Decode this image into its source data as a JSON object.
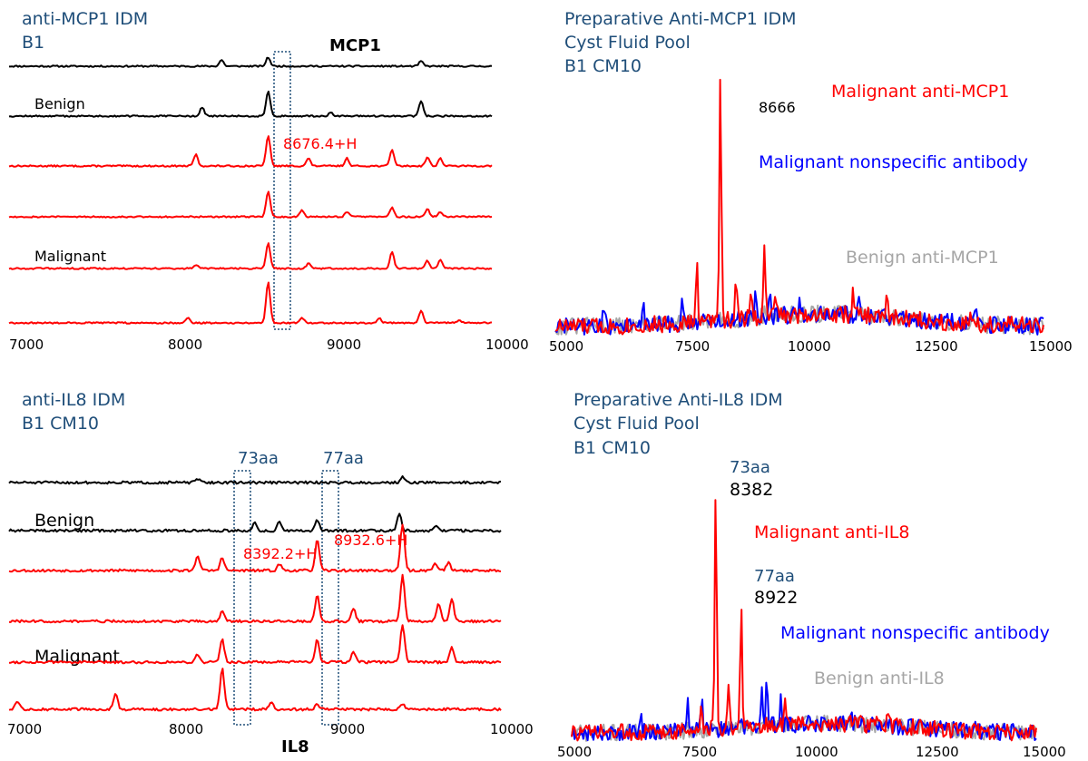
{
  "chart_data": [
    {
      "type": "line",
      "title_lines": [
        "anti-MCP1 IDM",
        "B1"
      ],
      "protein_label": "MCP1",
      "xlim": [
        7000,
        10000
      ],
      "x_ticks": [
        "7000",
        "8000",
        "9000",
        "10000"
      ],
      "highlight_window": [
        8550,
        8650
      ],
      "group_labels": {
        "benign": "Benign",
        "malignant": "Malignant"
      },
      "peak_annotation": "8676.4+H",
      "series": [
        {
          "group": "benign",
          "color": "#000000",
          "peaks": [
            [
              8320,
              0.25
            ],
            [
              8610,
              0.35
            ],
            [
              9560,
              0.2
            ]
          ]
        },
        {
          "group": "benign",
          "color": "#000000",
          "peaks": [
            [
              8200,
              0.35
            ],
            [
              8610,
              1.0
            ],
            [
              9560,
              0.6
            ],
            [
              9000,
              0.15
            ]
          ]
        },
        {
          "group": "malignant",
          "color": "#ff0000",
          "peaks": [
            [
              8160,
              0.45
            ],
            [
              8610,
              1.2
            ],
            [
              8860,
              0.3
            ],
            [
              9100,
              0.3
            ],
            [
              9380,
              0.65
            ],
            [
              9600,
              0.35
            ],
            [
              9680,
              0.3
            ]
          ]
        },
        {
          "group": "malignant",
          "color": "#ff0000",
          "peaks": [
            [
              8610,
              1.0
            ],
            [
              8820,
              0.25
            ],
            [
              9100,
              0.2
            ],
            [
              9380,
              0.35
            ],
            [
              9600,
              0.3
            ],
            [
              9680,
              0.2
            ]
          ]
        },
        {
          "group": "malignant",
          "color": "#ff0000",
          "peaks": [
            [
              8160,
              0.15
            ],
            [
              8610,
              1.0
            ],
            [
              8860,
              0.2
            ],
            [
              9380,
              0.65
            ],
            [
              9600,
              0.3
            ],
            [
              9680,
              0.35
            ]
          ]
        },
        {
          "group": "malignant",
          "color": "#ff0000",
          "peaks": [
            [
              8110,
              0.2
            ],
            [
              8610,
              1.6
            ],
            [
              8820,
              0.2
            ],
            [
              9300,
              0.2
            ],
            [
              9560,
              0.5
            ],
            [
              9800,
              0.1
            ]
          ]
        }
      ]
    },
    {
      "type": "line",
      "title_lines": [
        "Preparative Anti-MCP1 IDM",
        "Cyst Fluid Pool",
        "B1 CM10"
      ],
      "xlim": [
        5000,
        15000
      ],
      "x_ticks": [
        "5000",
        "7500",
        "10000",
        "12500",
        "15000"
      ],
      "peak_label": "8666",
      "series": [
        {
          "name": "Malignant anti-MCP1",
          "color": "#ff0000",
          "peaks": [
            [
              7900,
              0.22
            ],
            [
              8380,
              1.0
            ],
            [
              8700,
              0.14
            ],
            [
              9280,
              0.26
            ],
            [
              9000,
              0.12
            ],
            [
              9500,
              0.1
            ],
            [
              11100,
              0.08
            ],
            [
              11800,
              0.08
            ],
            [
              13500,
              0.06
            ]
          ]
        },
        {
          "name": "Malignant nonspecific antibody",
          "color": "#0000ff",
          "peaks": [
            [
              6000,
              0.08
            ],
            [
              6800,
              0.08
            ],
            [
              7600,
              0.1
            ],
            [
              9100,
              0.1
            ],
            [
              9400,
              0.08
            ],
            [
              10000,
              0.07
            ],
            [
              11200,
              0.06
            ],
            [
              13600,
              0.05
            ]
          ]
        },
        {
          "name": "Benign anti-MCP1",
          "color": "#a6a6a6",
          "peaks": [
            [
              9300,
              0.03
            ],
            [
              11000,
              0.02
            ]
          ]
        }
      ]
    },
    {
      "type": "line",
      "title_lines": [
        "anti-IL8 IDM",
        "B1 CM10"
      ],
      "protein_label": "IL8",
      "xlim": [
        7000,
        10000
      ],
      "x_ticks": [
        "7000",
        "8000",
        "9000",
        "10000"
      ],
      "highlight_windows": [
        [
          8260,
          8340
        ],
        [
          8820,
          8900
        ]
      ],
      "window_labels": [
        "73aa",
        "77aa"
      ],
      "group_labels": {
        "benign": "Benign",
        "malignant": "Malignant"
      },
      "peak_annotations": [
        "8392.2+H",
        "8932.6+H"
      ],
      "series": [
        {
          "group": "benign",
          "color": "#000000",
          "peaks": [
            [
              8150,
              0.15
            ],
            [
              9400,
              0.2
            ]
          ]
        },
        {
          "group": "benign",
          "color": "#000000",
          "peaks": [
            [
              8500,
              0.3
            ],
            [
              8650,
              0.35
            ],
            [
              8880,
              0.4
            ],
            [
              9380,
              0.7
            ],
            [
              9600,
              0.2
            ]
          ]
        },
        {
          "group": "malignant",
          "color": "#ff0000",
          "peaks": [
            [
              8150,
              0.6
            ],
            [
              8300,
              0.5
            ],
            [
              8650,
              0.25
            ],
            [
              8880,
              1.2
            ],
            [
              9400,
              1.8
            ],
            [
              9600,
              0.3
            ],
            [
              9680,
              0.3
            ]
          ]
        },
        {
          "group": "malignant",
          "color": "#ff0000",
          "peaks": [
            [
              8300,
              0.4
            ],
            [
              8880,
              1.0
            ],
            [
              9100,
              0.5
            ],
            [
              9400,
              1.8
            ],
            [
              9620,
              0.7
            ],
            [
              9700,
              0.9
            ]
          ]
        },
        {
          "group": "malignant",
          "color": "#ff0000",
          "peaks": [
            [
              8150,
              0.3
            ],
            [
              8300,
              0.9
            ],
            [
              8880,
              0.9
            ],
            [
              9100,
              0.4
            ],
            [
              9400,
              1.5
            ],
            [
              9700,
              0.6
            ]
          ]
        },
        {
          "group": "malignant",
          "color": "#ff0000",
          "peaks": [
            [
              7050,
              0.3
            ],
            [
              7650,
              0.6
            ],
            [
              8300,
              1.6
            ],
            [
              8600,
              0.3
            ],
            [
              8880,
              0.2
            ],
            [
              9400,
              0.2
            ]
          ]
        }
      ]
    },
    {
      "type": "line",
      "title_lines": [
        "Preparative Anti-IL8 IDM",
        "Cyst Fluid Pool",
        "B1 CM10"
      ],
      "xlim": [
        5000,
        15000
      ],
      "x_ticks": [
        "5000",
        "7500",
        "10000",
        "12500",
        "15000"
      ],
      "peak_labels": [
        {
          "aa": "73aa",
          "mass": "8382"
        },
        {
          "aa": "77aa",
          "mass": "8922"
        }
      ],
      "series": [
        {
          "name": "Malignant anti-IL8",
          "color": "#ff0000",
          "peaks": [
            [
              8100,
              1.0
            ],
            [
              8650,
              0.55
            ],
            [
              8380,
              0.2
            ],
            [
              9600,
              0.1
            ],
            [
              7800,
              0.1
            ],
            [
              11800,
              0.06
            ]
          ]
        },
        {
          "name": "Malignant nonspecific antibody",
          "color": "#0000ff",
          "peaks": [
            [
              6500,
              0.06
            ],
            [
              7500,
              0.12
            ],
            [
              7800,
              0.14
            ],
            [
              9200,
              0.18
            ],
            [
              9500,
              0.12
            ],
            [
              9100,
              0.14
            ],
            [
              11000,
              0.06
            ],
            [
              13700,
              0.05
            ]
          ]
        },
        {
          "name": "Benign anti-IL8",
          "color": "#a6a6a6",
          "peaks": [
            [
              9300,
              0.02
            ]
          ]
        }
      ]
    }
  ]
}
